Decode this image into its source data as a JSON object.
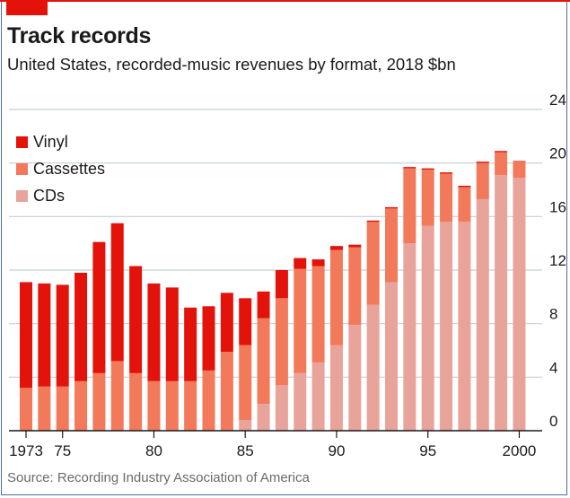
{
  "title": "Track records",
  "subtitle": "United States, recorded-music revenues by format, 2018 $bn",
  "source": "Source: Recording Industry Association of America",
  "colors": {
    "brand": "#e3120b",
    "vinyl": "#e3120b",
    "cassettes": "#f2795a",
    "cds": "#e8a39a",
    "grid": "#c2cfd9",
    "border": "#4a6fa0"
  },
  "chart_data": {
    "type": "bar",
    "stacked": true,
    "x": [
      1973,
      1974,
      1975,
      1976,
      1977,
      1978,
      1979,
      1980,
      1981,
      1982,
      1983,
      1984,
      1985,
      1986,
      1987,
      1988,
      1989,
      1990,
      1991,
      1992,
      1993,
      1994,
      1995,
      1996,
      1997,
      1998,
      1999,
      2000
    ],
    "x_tick_labels": [
      "1973",
      "75",
      "80",
      "85",
      "90",
      "95",
      "2000"
    ],
    "x_tick_values": [
      1973,
      1975,
      1980,
      1985,
      1990,
      1995,
      2000
    ],
    "y_ticks": [
      "24",
      "20",
      "16",
      "12",
      "8",
      "4",
      "0"
    ],
    "y_tick_values": [
      24,
      20,
      16,
      12,
      8,
      4,
      0
    ],
    "ylim": [
      0,
      24
    ],
    "y_axis_side": "right",
    "grid": true,
    "legend_position": "top-left",
    "series": [
      {
        "name": "CDs",
        "color": "#e8a39a",
        "values": [
          0,
          0,
          0,
          0,
          0,
          0,
          0,
          0,
          0,
          0,
          0,
          0,
          0.8,
          2.0,
          3.4,
          4.3,
          5.1,
          6.4,
          7.9,
          9.4,
          11.1,
          14.0,
          15.3,
          15.6,
          15.6,
          17.3,
          19.1,
          18.9
        ]
      },
      {
        "name": "Cassettes",
        "color": "#f2795a",
        "values": [
          3.2,
          3.3,
          3.3,
          3.7,
          4.3,
          5.2,
          4.3,
          3.7,
          3.7,
          3.7,
          4.5,
          5.9,
          5.6,
          6.4,
          6.5,
          7.8,
          7.2,
          7.1,
          5.8,
          6.2,
          5.5,
          5.6,
          4.2,
          3.6,
          2.6,
          2.7,
          1.7,
          1.2
        ]
      },
      {
        "name": "Vinyl",
        "color": "#e3120b",
        "values": [
          7.9,
          7.7,
          7.6,
          8.1,
          9.8,
          10.3,
          8.0,
          7.3,
          7.0,
          5.5,
          4.8,
          4.4,
          3.5,
          2.0,
          2.1,
          0.8,
          0.5,
          0.3,
          0.2,
          0.1,
          0.1,
          0.1,
          0.1,
          0.1,
          0.1,
          0.1,
          0.1,
          0.05
        ]
      }
    ]
  }
}
